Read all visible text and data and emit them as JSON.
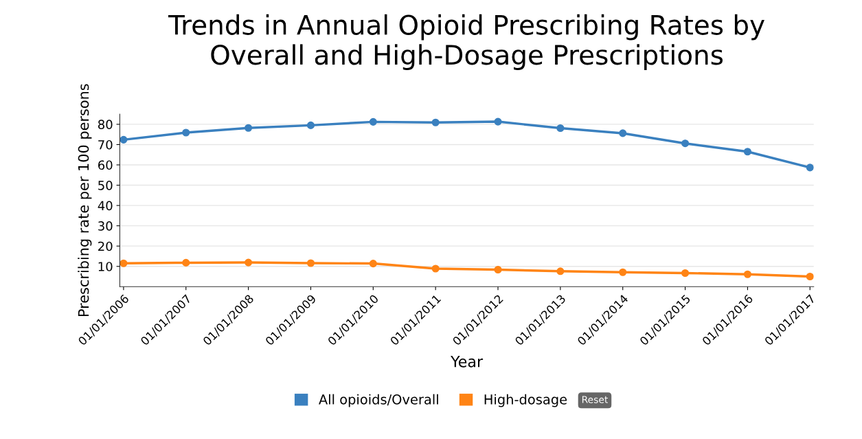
{
  "chart_data": {
    "type": "line",
    "title": "Trends in Annual Opioid Prescribing Rates by\nOverall and High-Dosage Prescriptions",
    "xlabel": "Year",
    "ylabel": "Prescribing rate per 100 persons",
    "categories": [
      "01/01/2006",
      "01/01/2007",
      "01/01/2008",
      "01/01/2009",
      "01/01/2010",
      "01/01/2011",
      "01/01/2012",
      "01/01/2013",
      "01/01/2014",
      "01/01/2015",
      "01/01/2016",
      "01/01/2017"
    ],
    "series": [
      {
        "name": "All opioids/Overall",
        "color": "#3a80bf",
        "values": [
          72.4,
          75.9,
          78.2,
          79.5,
          81.2,
          80.9,
          81.3,
          78.1,
          75.6,
          70.6,
          66.5,
          58.7
        ]
      },
      {
        "name": "High-dosage",
        "color": "#ff8415",
        "values": [
          11.5,
          11.8,
          11.9,
          11.6,
          11.4,
          8.9,
          8.4,
          7.6,
          7.1,
          6.7,
          6.1,
          5.0
        ]
      }
    ],
    "ylim": [
      0,
      85
    ],
    "yticks": [
      10,
      20,
      30,
      40,
      50,
      60,
      70,
      80
    ],
    "grid": "y",
    "legend": "bottom",
    "marker": "circle",
    "line_style": "solid",
    "annotations": [
      "Reset"
    ]
  }
}
